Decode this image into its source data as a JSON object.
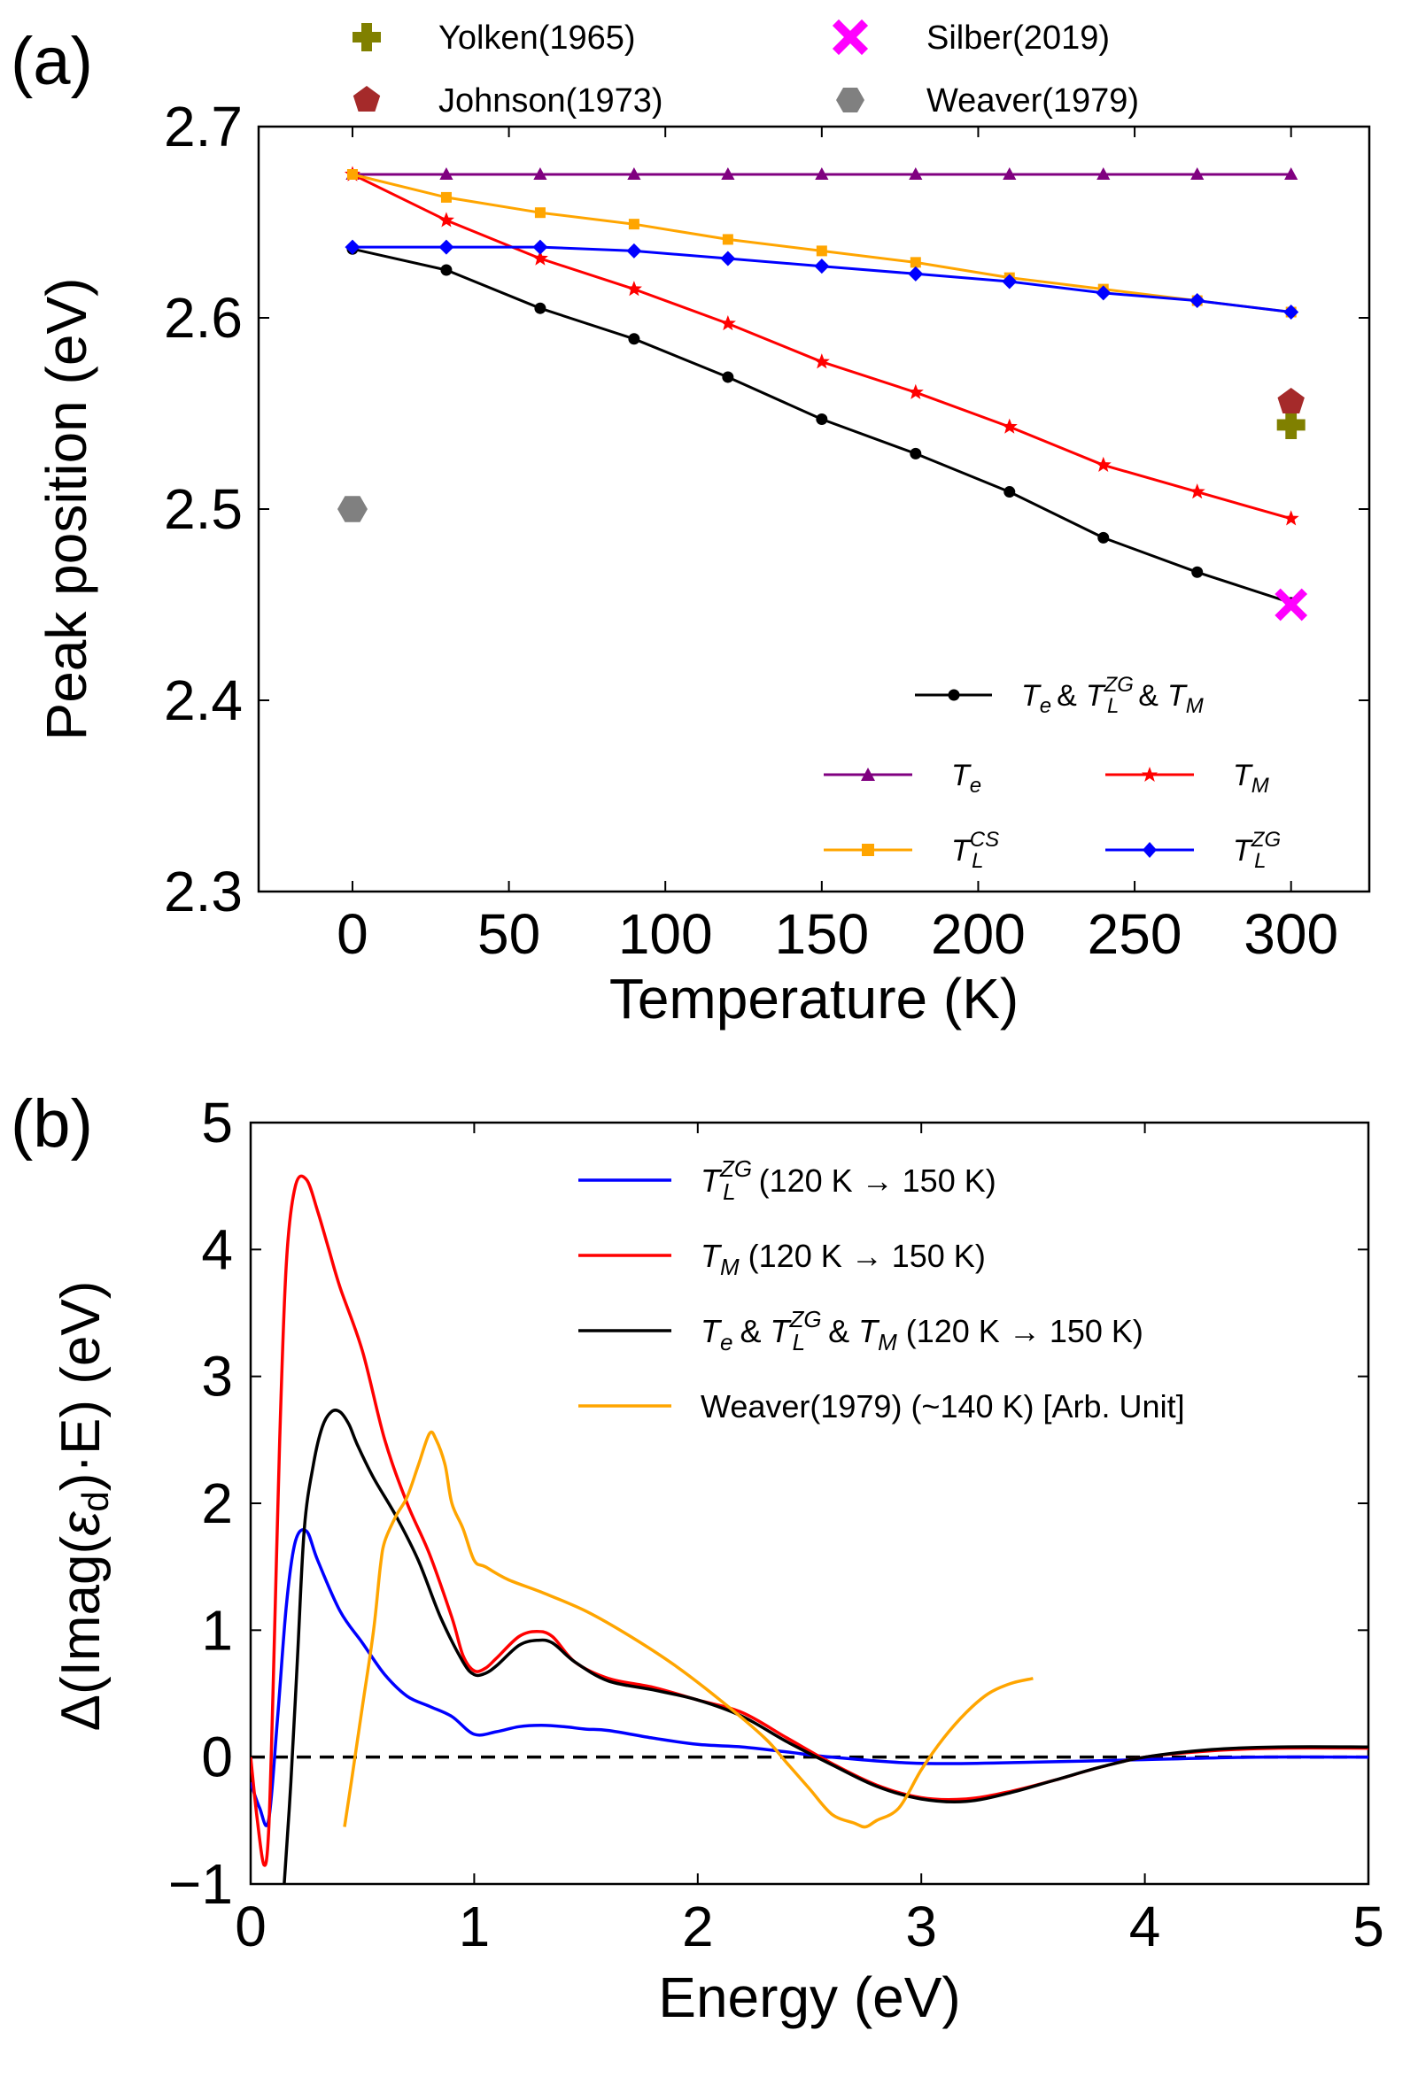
{
  "chart_data": [
    {
      "panel_label": "(a)",
      "type": "line",
      "xlabel": "Temperature (K)",
      "ylabel": "Peak position (eV)",
      "xlim": [
        -30,
        325
      ],
      "ylim": [
        2.3,
        2.7
      ],
      "xticks": [
        0,
        50,
        100,
        150,
        200,
        250,
        300
      ],
      "yticks": [
        2.3,
        2.4,
        2.5,
        2.6,
        2.7
      ],
      "xtick_labels": [
        "0",
        "50",
        "100",
        "150",
        "200",
        "250",
        "300"
      ],
      "ytick_labels": [
        "2.3",
        "2.4",
        "2.5",
        "2.6",
        "2.7"
      ],
      "x": [
        0,
        30,
        60,
        90,
        120,
        150,
        180,
        210,
        240,
        270,
        300
      ],
      "series": [
        {
          "key": "te_tlzg_tm",
          "name": "Te & TL^ZG & TM",
          "color": "#000000",
          "marker": "circle",
          "values": [
            2.636,
            2.625,
            2.605,
            2.589,
            2.569,
            2.547,
            2.529,
            2.509,
            2.485,
            2.467,
            2.451
          ]
        },
        {
          "key": "te",
          "name": "Te",
          "color": "#800080",
          "marker": "triangle",
          "values": [
            2.675,
            2.675,
            2.675,
            2.675,
            2.675,
            2.675,
            2.675,
            2.675,
            2.675,
            2.675,
            2.675
          ]
        },
        {
          "key": "tm",
          "name": "TM",
          "color": "#ff0000",
          "marker": "star",
          "values": [
            2.675,
            2.651,
            2.631,
            2.615,
            2.597,
            2.577,
            2.561,
            2.543,
            2.523,
            2.509,
            2.495
          ]
        },
        {
          "key": "tlcs",
          "name": "TL^CS",
          "color": "#ffa500",
          "marker": "square",
          "values": [
            2.675,
            2.663,
            2.655,
            2.649,
            2.641,
            2.635,
            2.629,
            2.621,
            2.615,
            2.609,
            2.603
          ]
        },
        {
          "key": "tlzg",
          "name": "TL^ZG",
          "color": "#0000ff",
          "marker": "diamond",
          "values": [
            2.637,
            2.637,
            2.637,
            2.635,
            2.631,
            2.627,
            2.623,
            2.619,
            2.613,
            2.609,
            2.603
          ]
        }
      ],
      "experiments": [
        {
          "name": "Yolken(1965)",
          "x": 300,
          "y": 2.544,
          "marker": "plus",
          "color": "#808000"
        },
        {
          "name": "Johnson(1973)",
          "x": 300,
          "y": 2.556,
          "marker": "pentagon",
          "color": "#a52a2a"
        },
        {
          "name": "Silber(2019)",
          "x": 300,
          "y": 2.45,
          "marker": "x",
          "color": "#ff00ff"
        },
        {
          "name": "Weaver(1979)",
          "x": 0,
          "y": 2.5,
          "marker": "hexagon",
          "color": "#808080"
        }
      ],
      "legend_placement": "lower-right; experiment legend above plot"
    },
    {
      "panel_label": "(b)",
      "type": "line",
      "xlabel": "Energy (eV)",
      "ylabel": "Δ(Imag(εd)·E) (eV)",
      "xlim": [
        0,
        5
      ],
      "ylim": [
        -1,
        5
      ],
      "xticks": [
        0,
        1,
        2,
        3,
        4,
        5
      ],
      "yticks": [
        -1,
        0,
        1,
        2,
        3,
        4,
        5
      ],
      "xtick_labels": [
        "0",
        "1",
        "2",
        "3",
        "4",
        "5"
      ],
      "ytick_labels": [
        "−1",
        "0",
        "1",
        "2",
        "3",
        "4",
        "5"
      ],
      "zero_line": "dashed",
      "series": [
        {
          "key": "tlzg",
          "name": "TL^ZG (120 K → 150 K)",
          "color": "#0000ff",
          "x": [
            0,
            0.04,
            0.08,
            0.12,
            0.16,
            0.2,
            0.25,
            0.3,
            0.4,
            0.5,
            0.6,
            0.7,
            0.8,
            0.9,
            1.0,
            1.1,
            1.2,
            1.3,
            1.4,
            1.5,
            1.6,
            1.8,
            2.0,
            2.2,
            2.4,
            2.6,
            3.0,
            3.5,
            4.0,
            4.5,
            5.0
          ],
          "y": [
            -0.2,
            -0.4,
            -0.5,
            0.3,
            1.2,
            1.7,
            1.78,
            1.55,
            1.15,
            0.9,
            0.65,
            0.48,
            0.4,
            0.32,
            0.18,
            0.2,
            0.24,
            0.25,
            0.24,
            0.22,
            0.21,
            0.15,
            0.1,
            0.08,
            0.04,
            0.0,
            -0.05,
            -0.04,
            -0.02,
            0.0,
            0.0
          ]
        },
        {
          "key": "tm",
          "name": "TM (120 K → 150 K)",
          "color": "#ff0000",
          "x": [
            0,
            0.03,
            0.06,
            0.08,
            0.1,
            0.13,
            0.16,
            0.2,
            0.25,
            0.3,
            0.35,
            0.4,
            0.5,
            0.6,
            0.7,
            0.8,
            0.9,
            0.95,
            1.0,
            1.05,
            1.1,
            1.2,
            1.28,
            1.35,
            1.45,
            1.6,
            1.8,
            2.0,
            2.2,
            2.4,
            2.6,
            2.8,
            3.0,
            3.2,
            3.4,
            3.6,
            3.8,
            4.0,
            4.3,
            4.6,
            5.0
          ],
          "y": [
            0.0,
            -0.5,
            -0.85,
            -0.6,
            0.5,
            2.5,
            3.9,
            4.5,
            4.55,
            4.3,
            4.0,
            3.7,
            3.2,
            2.5,
            2.0,
            1.6,
            1.1,
            0.8,
            0.68,
            0.7,
            0.78,
            0.95,
            0.99,
            0.95,
            0.75,
            0.62,
            0.55,
            0.45,
            0.35,
            0.15,
            -0.05,
            -0.22,
            -0.32,
            -0.33,
            -0.27,
            -0.18,
            -0.08,
            0.0,
            0.05,
            0.07,
            0.07
          ]
        },
        {
          "key": "all",
          "name": "Te & TL^ZG & TM (120 K → 150 K)",
          "color": "#000000",
          "x": [
            0.15,
            0.18,
            0.21,
            0.24,
            0.28,
            0.32,
            0.36,
            0.4,
            0.44,
            0.48,
            0.55,
            0.65,
            0.75,
            0.85,
            0.95,
            1.0,
            1.05,
            1.1,
            1.2,
            1.28,
            1.35,
            1.45,
            1.6,
            1.8,
            2.0,
            2.2,
            2.4,
            2.6,
            2.8,
            3.0,
            3.2,
            3.4,
            3.6,
            3.8,
            4.0,
            4.3,
            4.6,
            5.0
          ],
          "y": [
            -1.0,
            -0.2,
            0.8,
            1.8,
            2.3,
            2.6,
            2.72,
            2.72,
            2.62,
            2.45,
            2.2,
            1.9,
            1.55,
            1.1,
            0.75,
            0.65,
            0.66,
            0.72,
            0.88,
            0.92,
            0.9,
            0.75,
            0.6,
            0.53,
            0.45,
            0.32,
            0.12,
            -0.06,
            -0.23,
            -0.33,
            -0.35,
            -0.28,
            -0.18,
            -0.08,
            0.0,
            0.06,
            0.08,
            0.08
          ]
        },
        {
          "key": "weaver",
          "name": "Weaver(1979) (~140 K) [Arb. Unit]",
          "color": "#ffa500",
          "x": [
            0.42,
            0.45,
            0.5,
            0.55,
            0.58,
            0.6,
            0.65,
            0.7,
            0.75,
            0.8,
            0.83,
            0.87,
            0.9,
            0.95,
            1.0,
            1.05,
            1.15,
            1.3,
            1.5,
            1.7,
            1.9,
            2.1,
            2.3,
            2.4,
            2.5,
            2.6,
            2.7,
            2.75,
            2.8,
            2.9,
            3.0,
            3.1,
            3.2,
            3.3,
            3.4,
            3.5
          ],
          "y": [
            -0.55,
            -0.2,
            0.4,
            1.0,
            1.5,
            1.7,
            1.9,
            2.05,
            2.3,
            2.55,
            2.5,
            2.3,
            2.0,
            1.8,
            1.55,
            1.5,
            1.4,
            1.3,
            1.15,
            0.95,
            0.72,
            0.45,
            0.15,
            -0.05,
            -0.25,
            -0.45,
            -0.52,
            -0.55,
            -0.5,
            -0.4,
            -0.1,
            0.15,
            0.35,
            0.5,
            0.58,
            0.62
          ]
        }
      ],
      "legend_placement": "top-right"
    }
  ],
  "labels": {
    "a": {
      "panel": "(a)",
      "title_x": "Temperature (K)",
      "title_y": "Peak position (eV)",
      "exp_yolken": "Yolken(1965)",
      "exp_johnson": "Johnson(1973)",
      "exp_silber": "Silber(2019)",
      "exp_weaver": "Weaver(1979)",
      "amp": "&",
      "sym_T": "T",
      "sub_e": "e",
      "sub_M": "M",
      "sub_L": "L",
      "sup_ZG": "ZG",
      "sup_CS": "CS"
    },
    "b": {
      "panel": "(b)",
      "title_x": "Energy (eV)",
      "ylabel_head": "Δ(Imag(",
      "ylabel_eps": "ε",
      "ylabel_eps_sub": "d",
      "ylabel_tail": ")·E) (eV)",
      "range_text": "(120 K → 150 K)",
      "weaver_text": "Weaver(1979) (~140 K) [Arb. Unit]",
      "amp": "&",
      "sym_T": "T",
      "sub_e": "e",
      "sub_M": "M",
      "sub_L": "L",
      "sup_ZG": "ZG"
    }
  }
}
